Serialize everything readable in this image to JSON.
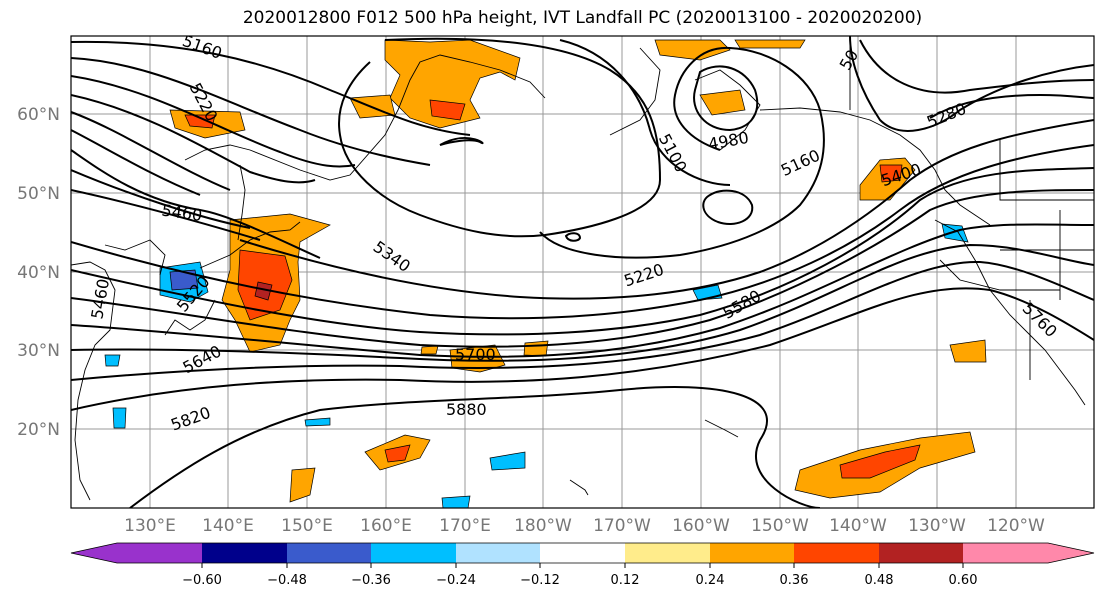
{
  "title": "2020012800 F012 500 hPa height, IVT Landfall PC (2020013100 - 2020020200)",
  "lon_ticks": [
    "130°E",
    "140°E",
    "150°E",
    "160°E",
    "170°E",
    "180°W",
    "170°W",
    "160°W",
    "150°W",
    "140°W",
    "130°W",
    "120°W"
  ],
  "lat_ticks": [
    "60°N",
    "50°N",
    "40°N",
    "30°N",
    "20°N"
  ],
  "contour_labels": [
    "5160",
    "5220",
    "5460",
    "5520",
    "5460",
    "5640",
    "5820",
    "5340",
    "5700",
    "5880",
    "5220",
    "5580",
    "5100",
    "4980",
    "5160",
    "5280",
    "5400",
    "5760",
    "50"
  ],
  "colorbar": {
    "ticks": [
      "−0.60",
      "−0.48",
      "−0.36",
      "−0.24",
      "−0.12",
      "0.12",
      "0.24",
      "0.36",
      "0.48",
      "0.60"
    ],
    "colors": [
      "#9932cc",
      "#00008b",
      "#3a5bcc",
      "#00bfff",
      "#b0e2ff",
      "#ffffff",
      "#ffec8b",
      "#ffa500",
      "#ff4500",
      "#b22222",
      "#ff88aa"
    ]
  }
}
